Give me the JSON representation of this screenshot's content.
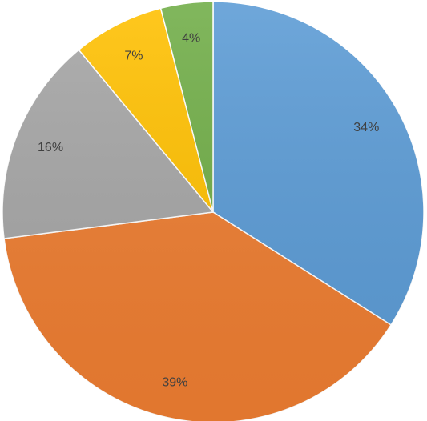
{
  "chart_data": {
    "type": "pie",
    "values": [
      34,
      39,
      16,
      7,
      4
    ],
    "value_labels": [
      "34%",
      "39%",
      "16%",
      "7%",
      "4%"
    ],
    "colors": [
      "#5b9bd5",
      "#ed7d31",
      "#a5a5a5",
      "#ffc000",
      "#70ad47"
    ]
  }
}
